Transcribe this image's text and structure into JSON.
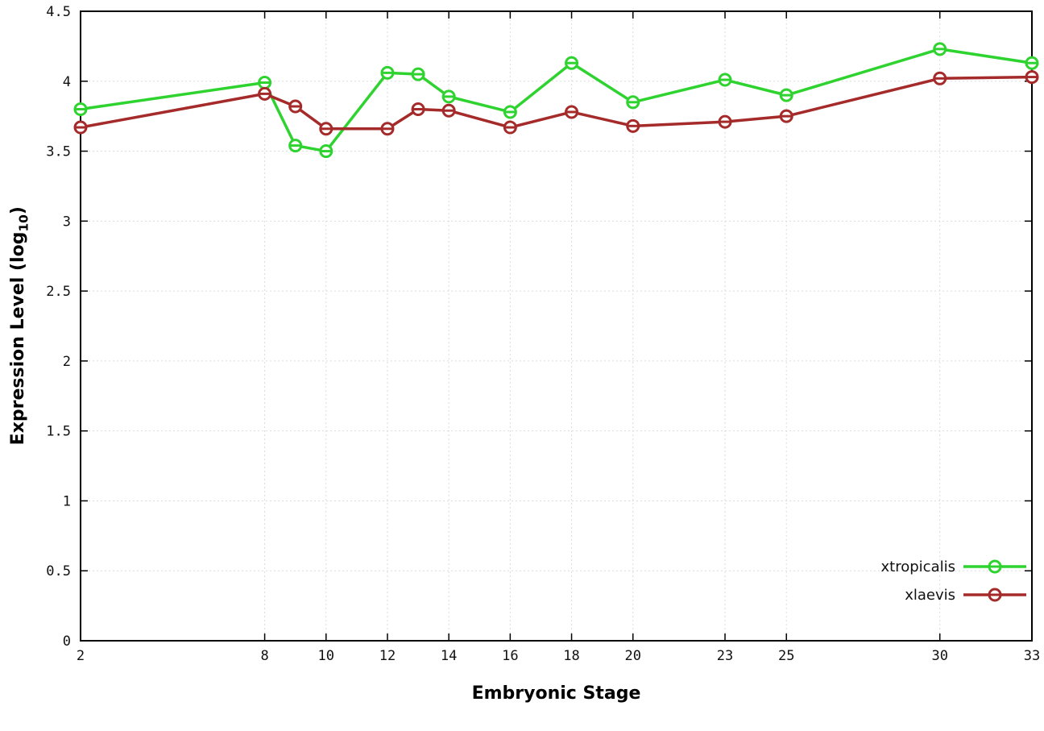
{
  "chart_data": {
    "type": "line",
    "title": "",
    "xlabel": "Embryonic Stage",
    "ylabel": "Expression Level (log10)",
    "ylabel_main": "Expression Level (log",
    "ylabel_sub": "10",
    "ylabel_suffix": ")",
    "x": [
      2,
      8,
      9,
      10,
      12,
      13,
      14,
      16,
      18,
      20,
      23,
      25,
      30,
      33
    ],
    "xticks": [
      2,
      8,
      10,
      12,
      14,
      16,
      18,
      20,
      23,
      25,
      30,
      33
    ],
    "yticks": [
      0,
      0.5,
      1,
      1.5,
      2,
      2.5,
      3,
      3.5,
      4,
      4.5
    ],
    "xlim": [
      2,
      33
    ],
    "ylim": [
      0,
      4.5
    ],
    "grid": true,
    "legend_position": "bottom-right",
    "series": [
      {
        "name": "xtropicalis",
        "color": "#2fd32f",
        "values": [
          3.8,
          3.99,
          3.54,
          3.5,
          4.06,
          4.05,
          3.89,
          3.78,
          4.13,
          3.85,
          4.01,
          3.9,
          4.23,
          4.13
        ]
      },
      {
        "name": "xlaevis",
        "color": "#a52a2a",
        "values": [
          3.67,
          3.91,
          3.82,
          3.66,
          3.66,
          3.8,
          3.79,
          3.67,
          3.78,
          3.68,
          3.71,
          3.75,
          4.02,
          4.03
        ]
      }
    ]
  }
}
